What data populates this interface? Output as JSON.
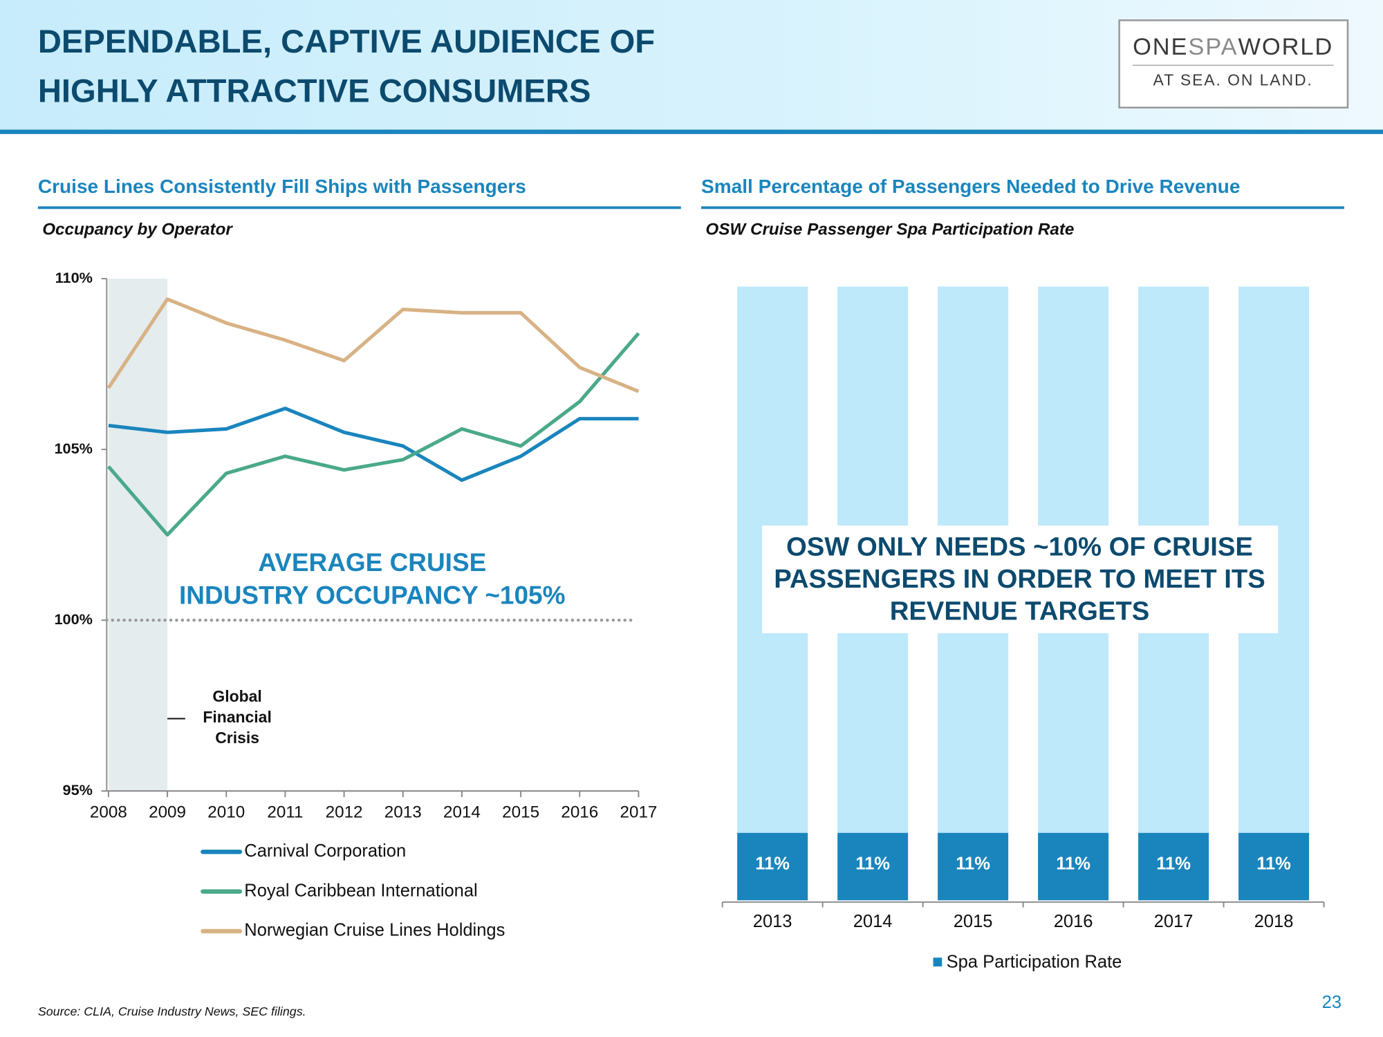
{
  "header": {
    "title": [
      "DEPENDABLE, CAPTIVE AUDIENCE OF",
      "HIGHLY ATTRACTIVE CONSUMERS"
    ],
    "logo": {
      "name_parts": [
        "ONE",
        "SPA",
        "WORLD"
      ],
      "tagline": "AT SEA. ON LAND."
    }
  },
  "chart_data": [
    {
      "type": "line",
      "heading": "Cruise Lines Consistently Fill Ships with Passengers",
      "title": "Occupancy by Operator",
      "x": [
        2008,
        2009,
        2010,
        2011,
        2012,
        2013,
        2014,
        2015,
        2016,
        2017
      ],
      "xlim": [
        2008,
        2017
      ],
      "xticks": [
        2008,
        2009,
        2010,
        2011,
        2012,
        2013,
        2014,
        2015,
        2016,
        2017
      ],
      "ylim": [
        95,
        110
      ],
      "yticks": [
        {
          "value": 95,
          "label": "95%"
        },
        {
          "value": 100,
          "label": "100%"
        },
        {
          "value": 105,
          "label": "105%"
        },
        {
          "value": 110,
          "label": "110%"
        }
      ],
      "series": [
        {
          "name": "Carnival  Corporation",
          "color": "#1a85bd",
          "values": [
            105.7,
            105.5,
            105.6,
            106.2,
            105.5,
            105.1,
            104.1,
            104.8,
            105.9,
            105.9
          ]
        },
        {
          "name": "Royal Caribbean International",
          "color": "#4aa98a",
          "values": [
            104.5,
            102.5,
            104.3,
            104.8,
            104.4,
            104.7,
            105.6,
            105.1,
            106.4,
            108.4
          ]
        },
        {
          "name": "Norwegian Cruise Lines Holdings",
          "color": "#d8b285",
          "values": [
            106.8,
            109.4,
            108.7,
            108.2,
            107.6,
            109.1,
            109.0,
            109.0,
            107.4,
            106.7
          ]
        }
      ],
      "reference_line": 100,
      "shaded_span": [
        2008,
        2009
      ],
      "annotations": [
        {
          "text": [
            "AVERAGE CRUISE",
            "INDUSTRY OCCUPANCY ~105%"
          ],
          "color": "#1a85bd"
        },
        {
          "text": [
            "Global",
            "Financial",
            "Crisis"
          ],
          "color": "#111111"
        }
      ]
    },
    {
      "type": "bar",
      "heading": "Small Percentage of Passengers Needed to Drive Revenue",
      "title": "OSW Cruise Passenger Spa Participation Rate",
      "categories": [
        "2013",
        "2014",
        "2015",
        "2016",
        "2017",
        "2018"
      ],
      "ylim": [
        0,
        100
      ],
      "series": [
        {
          "name": "Spa Participation Rate",
          "color": "#1a85bd",
          "values": [
            11,
            11,
            11,
            11,
            11,
            11
          ],
          "value_labels": [
            "11%",
            "11%",
            "11%",
            "11%",
            "11%",
            "11%"
          ]
        },
        {
          "color": "#bde9fb",
          "values": [
            89,
            89,
            89,
            89,
            89,
            89
          ]
        }
      ],
      "callout": [
        "OSW ONLY NEEDS ~10% OF CRUISE",
        "PASSENGERS IN ORDER TO MEET ITS",
        "REVENUE TARGETS"
      ]
    }
  ],
  "source": "Source: CLIA, Cruise Industry News, SEC filings.",
  "page_number": "23"
}
